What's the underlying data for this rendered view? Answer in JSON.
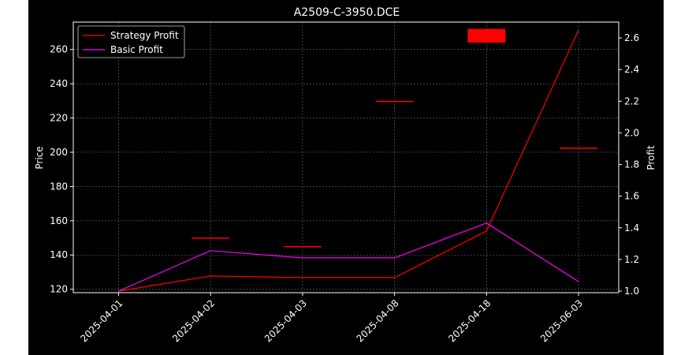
{
  "chart_data": {
    "type": "line",
    "title": "A2509-C-3950.DCE",
    "xlabel": "",
    "ylabel": "Price",
    "y2label": "Profit",
    "categories": [
      "2025-04-01",
      "2025-04-02",
      "2025-04-03",
      "2025-04-08",
      "2025-04-18",
      "2025-06-03"
    ],
    "ylim": [
      118,
      276
    ],
    "y2lim": [
      0.99,
      2.7
    ],
    "yticks": [
      120,
      140,
      160,
      180,
      200,
      220,
      240,
      260
    ],
    "y2ticks": [
      1.0,
      1.2,
      1.4,
      1.6,
      1.8,
      2.0,
      2.2,
      2.4,
      2.6
    ],
    "grid": true,
    "legend_position": "top-left",
    "series": [
      {
        "name": "Strategy Profit",
        "axis": "right",
        "color": "#ff0000",
        "values": [
          1.0,
          1.095,
          1.085,
          1.085,
          1.38,
          2.65
        ]
      },
      {
        "name": "Basic Profit",
        "axis": "right",
        "color": "#ff00ff",
        "values": [
          1.0,
          1.255,
          1.21,
          1.21,
          1.43,
          1.06
        ]
      }
    ],
    "candles": [
      {
        "x": "2025-04-02",
        "open": 150,
        "close": 150.2
      },
      {
        "x": "2025-04-03",
        "open": 145,
        "close": 145.2
      },
      {
        "x": "2025-04-08",
        "open": 230,
        "close": 229.6
      },
      {
        "x": "2025-04-18",
        "open": 272,
        "close": 264
      },
      {
        "x": "2025-06-03",
        "open": 202.5,
        "close": 202.7
      }
    ],
    "candle_color": "#ff0000"
  }
}
